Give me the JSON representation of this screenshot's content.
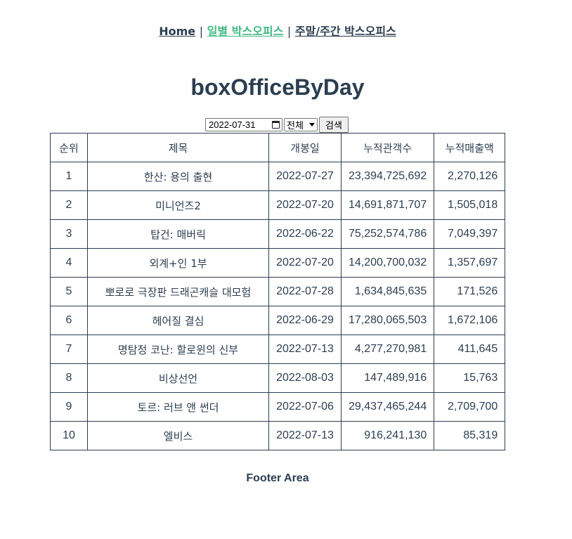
{
  "nav": {
    "home": "Home",
    "daily": "일별 박스오피스",
    "weekly": "주말/주간 박스오피스",
    "separator": "|"
  },
  "page_title": "boxOfficeByDay",
  "controls": {
    "date_value": "2022-07-31",
    "select_value": "전체",
    "search_label": "검색"
  },
  "table": {
    "headers": [
      "순위",
      "제목",
      "개봉일",
      "누적관객수",
      "누적매출액"
    ],
    "rows": [
      {
        "rank": "1",
        "title": "한산: 용의 출현",
        "open": "2022-07-27",
        "audience": "23,394,725,692",
        "sales": "2,270,126"
      },
      {
        "rank": "2",
        "title": "미니언즈2",
        "open": "2022-07-20",
        "audience": "14,691,871,707",
        "sales": "1,505,018"
      },
      {
        "rank": "3",
        "title": "탑건: 매버릭",
        "open": "2022-06-22",
        "audience": "75,252,574,786",
        "sales": "7,049,397"
      },
      {
        "rank": "4",
        "title": "외계+인 1부",
        "open": "2022-07-20",
        "audience": "14,200,700,032",
        "sales": "1,357,697"
      },
      {
        "rank": "5",
        "title": "뽀로로 극장판 드래곤캐슬 대모험",
        "open": "2022-07-28",
        "audience": "1,634,845,635",
        "sales": "171,526"
      },
      {
        "rank": "6",
        "title": "헤어질 결심",
        "open": "2022-06-29",
        "audience": "17,280,065,503",
        "sales": "1,672,106"
      },
      {
        "rank": "7",
        "title": "명탐정 코난: 할로윈의 신부",
        "open": "2022-07-13",
        "audience": "4,277,270,981",
        "sales": "411,645"
      },
      {
        "rank": "8",
        "title": "비상선언",
        "open": "2022-08-03",
        "audience": "147,489,916",
        "sales": "15,763"
      },
      {
        "rank": "9",
        "title": "토르: 러브 앤 썬더",
        "open": "2022-07-06",
        "audience": "29,437,465,244",
        "sales": "2,709,700"
      },
      {
        "rank": "10",
        "title": "엘비스",
        "open": "2022-07-13",
        "audience": "916,241,130",
        "sales": "85,319"
      }
    ]
  },
  "footer": "Footer Area",
  "colors": {
    "text": "#2c3e50",
    "active_link": "#42b983"
  }
}
